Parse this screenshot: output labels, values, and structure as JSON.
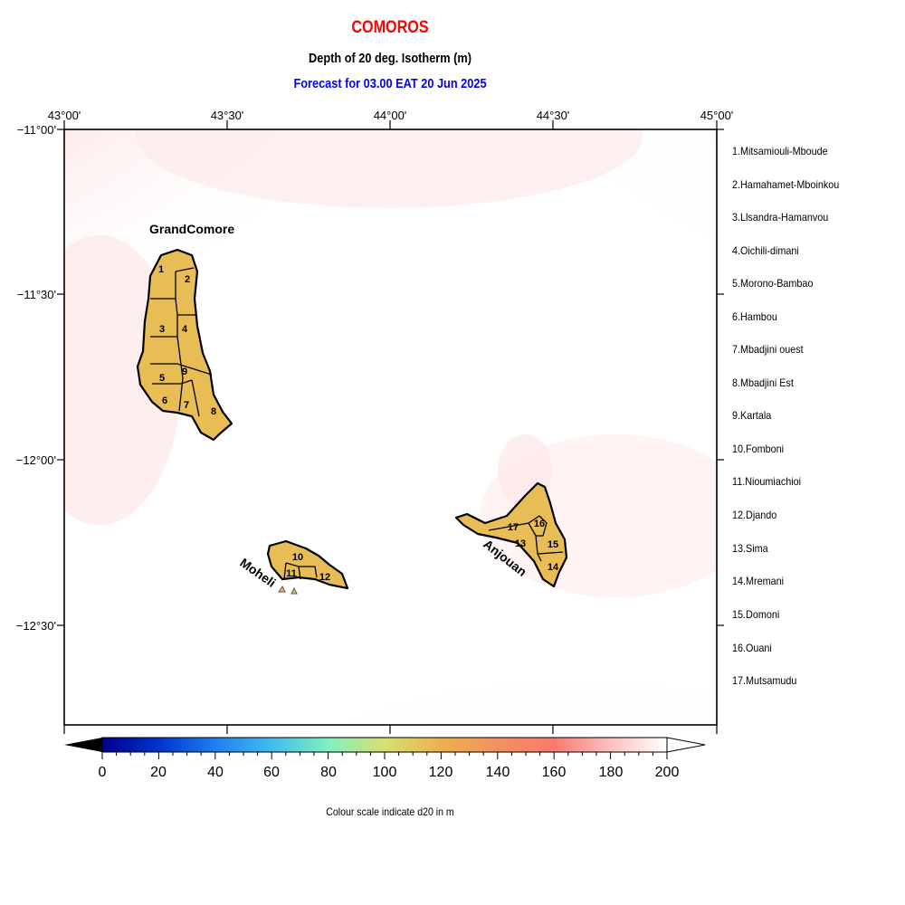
{
  "header": {
    "title": "COMOROS",
    "subtitle": "Depth of 20 deg. Isotherm (m)",
    "forecast": "Forecast for  03.00 EAT 20 Jun 2025"
  },
  "map": {
    "lon_ticks": [
      "43°00'",
      "43°30'",
      "44°00'",
      "44°30'",
      "45°00'"
    ],
    "lat_ticks": [
      "−11°00'",
      "−11°30'",
      "−12°00'",
      "−12°30'"
    ],
    "island_labels": {
      "grand_comore": "GrandComore",
      "moheli": "Moheli",
      "anjouan": "Anjouan"
    },
    "district_numbers": [
      "1",
      "2",
      "3",
      "4",
      "5",
      "6",
      "7",
      "8",
      "9",
      "10",
      "11",
      "12",
      "13",
      "14",
      "15",
      "16",
      "17"
    ],
    "colors": {
      "land": "#e8bd55",
      "warm_sea": "#fdd4d4",
      "coast": "#000000"
    }
  },
  "legend": {
    "regions": [
      "1.Mitsamiouli-Mboude",
      "2.Hamahamet-Mboinkou",
      "3.Llsandra-Hamanvou",
      "4.Oichili-dimani",
      "5.Morono-Bambao",
      "6.Hambou",
      "7.Mbadjini ouest",
      "8.Mbadjini Est",
      "9.Kartala",
      "10.Fomboni",
      "11.Nioumiachioi",
      "12.Djando",
      "13.Sima",
      "14.Mremani",
      "15.Domoni",
      "16.Ouani",
      "17.Mutsamudu"
    ]
  },
  "colorbar": {
    "ticks": [
      "0",
      "20",
      "40",
      "60",
      "80",
      "100",
      "120",
      "140",
      "160",
      "180",
      "200"
    ],
    "colors": [
      "#00008b",
      "#0033cc",
      "#1f7ff0",
      "#3fbdf0",
      "#80f0c0",
      "#d8e070",
      "#edb04e",
      "#f49060",
      "#fa7a70",
      "#fcc0c0",
      "#ffffff"
    ],
    "caption": "Colour scale indicate d20 in m"
  }
}
